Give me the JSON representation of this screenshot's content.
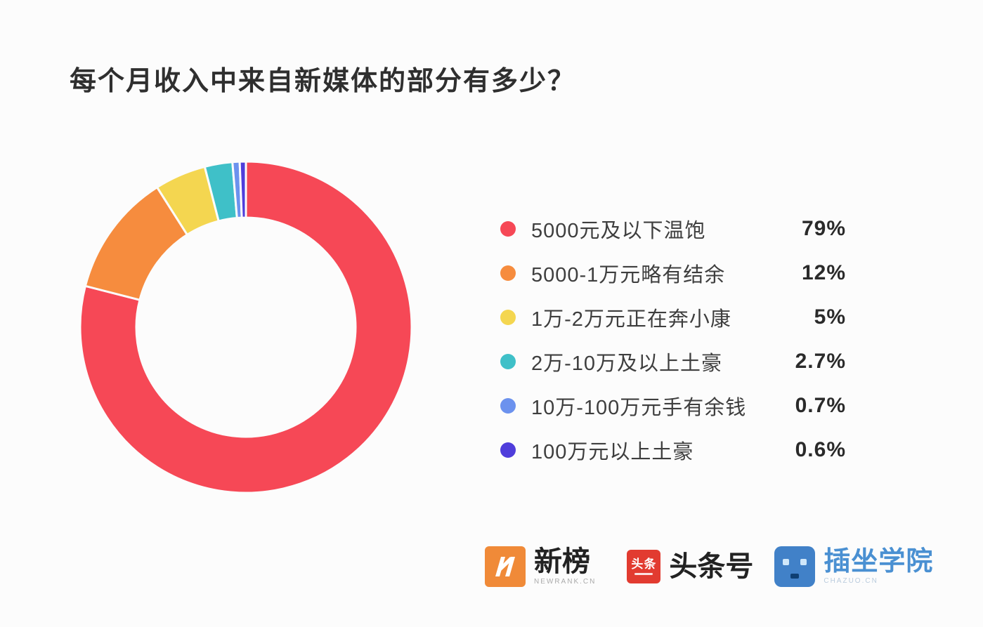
{
  "header": {
    "title": "每个月收入中来自新媒体的部分有多少？"
  },
  "chart_data": {
    "type": "pie",
    "donut": true,
    "title": "每个月收入中来自新媒体的部分有多少？",
    "legend_position": "right",
    "start_angle": "top",
    "direction": "clockwise",
    "items": [
      {
        "label": "5000元及以下温饱",
        "value": 79,
        "percent_label": "79%",
        "color": "#F64856"
      },
      {
        "label": "5000-1万元略有结余",
        "value": 12,
        "percent_label": "12%",
        "color": "#F68C3E"
      },
      {
        "label": "1万-2万元正在奔小康",
        "value": 5,
        "percent_label": "5%",
        "color": "#F4D650"
      },
      {
        "label": "2万-10万及以上土豪",
        "value": 2.7,
        "percent_label": "2.7%",
        "color": "#3FC0C8"
      },
      {
        "label": "10万-100万元手有余钱",
        "value": 0.7,
        "percent_label": "0.7%",
        "color": "#6C92EE"
      },
      {
        "label": "100万元以上土豪",
        "value": 0.6,
        "percent_label": "0.6%",
        "color": "#4F3DDB"
      }
    ]
  },
  "footer": {
    "logos": [
      {
        "name": "newrank-logo",
        "icon": "newrank-n-icon",
        "badge_color": "#F08A38",
        "text": "新榜",
        "subtext": "NEWRANK.CN"
      },
      {
        "name": "toutiao-logo",
        "icon": "toutiao-square-icon",
        "badge_color": "#E23B30",
        "badge_text": "头条",
        "text": "头条号"
      },
      {
        "name": "chazuo-logo",
        "icon": "chazuo-face-icon",
        "badge_color": "#4181C8",
        "text": "插坐学院",
        "subtext": "CHAZUO.CN",
        "text_color": "#4A90D2"
      }
    ]
  }
}
